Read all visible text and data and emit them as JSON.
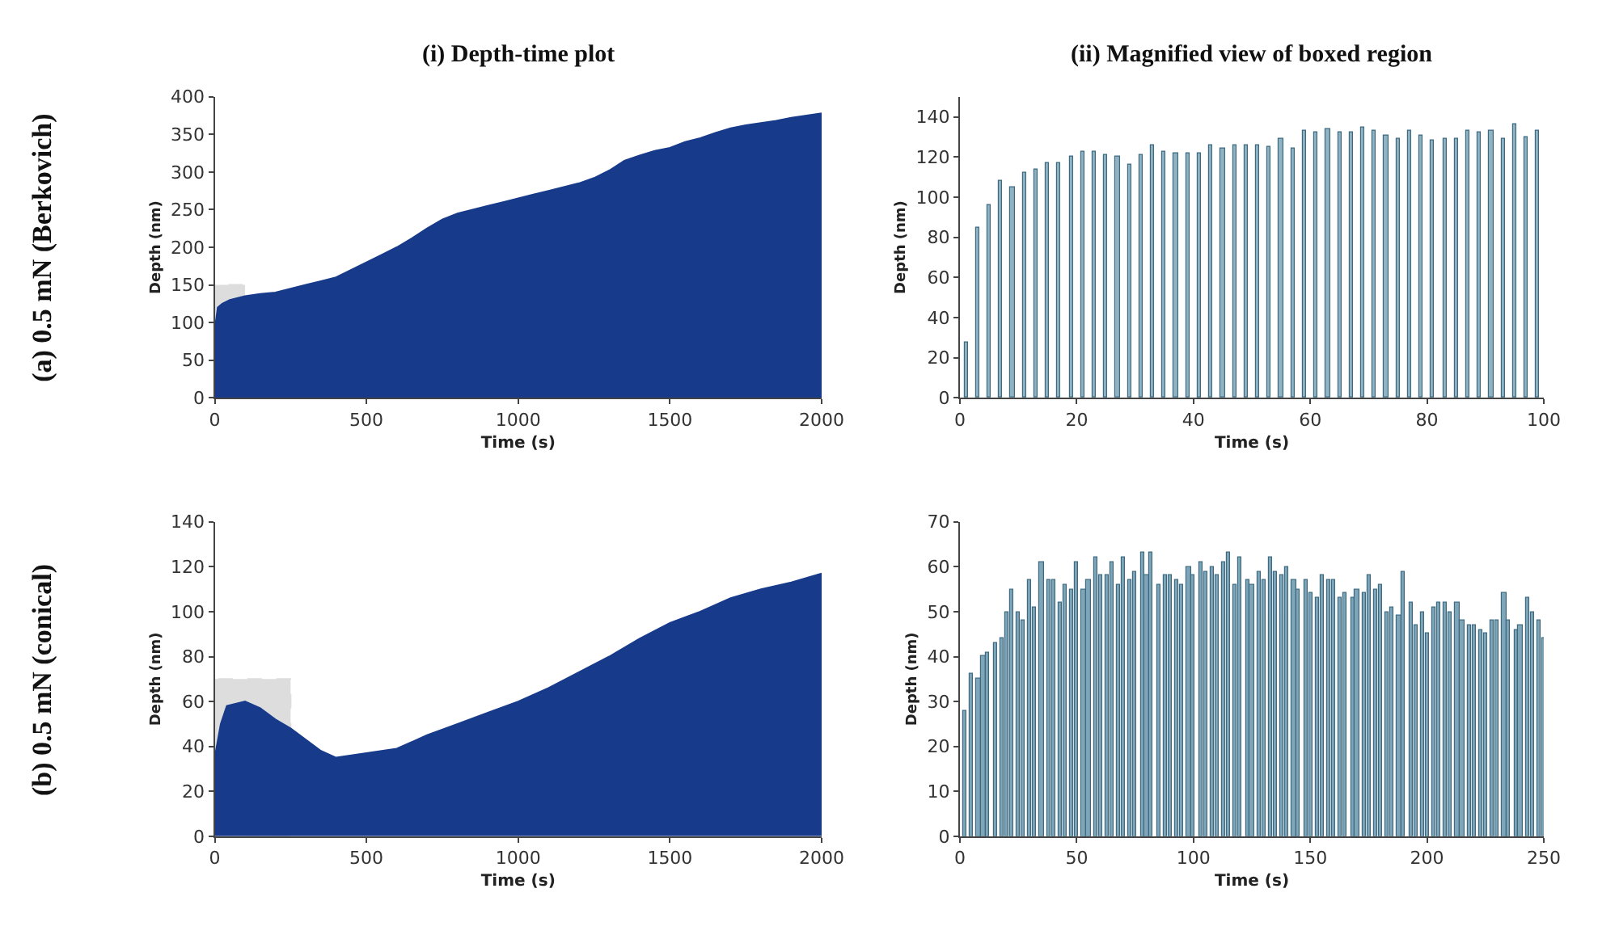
{
  "chart_data": [
    {
      "type": "area",
      "title": "(i) Depth-time plot",
      "annotations": [
        "(a) 0.5 mN (Berkovich)"
      ],
      "xlabel": "Time (s)",
      "ylabel": "Depth (nm)",
      "x": [
        0,
        10,
        25,
        50,
        100,
        150,
        200,
        250,
        300,
        350,
        400,
        450,
        500,
        550,
        600,
        650,
        700,
        750,
        800,
        850,
        900,
        950,
        1000,
        1050,
        1100,
        1150,
        1200,
        1250,
        1300,
        1350,
        1400,
        1450,
        1500,
        1550,
        1600,
        1650,
        1700,
        1750,
        1800,
        1850,
        1900,
        1950,
        2000
      ],
      "series": [
        {
          "color": "#173b8a",
          "values": [
            90,
            120,
            125,
            130,
            135,
            138,
            140,
            145,
            150,
            155,
            160,
            170,
            180,
            190,
            200,
            212,
            225,
            237,
            245,
            250,
            255,
            260,
            265,
            270,
            275,
            280,
            285,
            292,
            302,
            315,
            322,
            328,
            332,
            340,
            345,
            352,
            358,
            362,
            365,
            368,
            372,
            375,
            378
          ]
        }
      ],
      "xlim": [
        0,
        2000
      ],
      "xticks": [
        0,
        500,
        1000,
        1500,
        2000
      ],
      "ylim": [
        0,
        400
      ],
      "yticks": [
        0,
        50,
        100,
        150,
        200,
        250,
        300,
        350,
        400
      ],
      "bands": [
        {
          "axis": "x",
          "from": 0,
          "to": 100,
          "color": "#555555"
        }
      ]
    },
    {
      "type": "bar",
      "title": "(ii) Magnified view of boxed region",
      "xlabel": "Time (s)",
      "ylabel": "Depth (nm)",
      "x": [
        1,
        3,
        5,
        7,
        9,
        11,
        13,
        15,
        17,
        19,
        21,
        23,
        25,
        27,
        29,
        31,
        33,
        35,
        37,
        39,
        41,
        43,
        45,
        47,
        49,
        51,
        53,
        55,
        57,
        59,
        61,
        63,
        65,
        67,
        69,
        71,
        73,
        75,
        77,
        79,
        81,
        83,
        85,
        87,
        89,
        91,
        93,
        95,
        97,
        99
      ],
      "series": [
        {
          "color": "#8fb3c2",
          "values": [
            28,
            85,
            96,
            108,
            105,
            112,
            114,
            117,
            117,
            120,
            123,
            123,
            121,
            120,
            116,
            121,
            126,
            123,
            122,
            122,
            122,
            126,
            124,
            126,
            126,
            126,
            125,
            129,
            124,
            133,
            132,
            134,
            132,
            132,
            135,
            133,
            131,
            129,
            133,
            131,
            128,
            129,
            129,
            133,
            132,
            133,
            129,
            136,
            130,
            133
          ]
        }
      ],
      "xlim": [
        0,
        100
      ],
      "xticks": [
        0,
        20,
        40,
        60,
        80,
        100
      ],
      "ylim": [
        0,
        150
      ],
      "yticks": [
        0,
        20,
        40,
        60,
        80,
        100,
        120,
        140
      ]
    },
    {
      "type": "area",
      "annotations": [
        "(b) 0.5 mN (conical)"
      ],
      "xlabel": "Time (s)",
      "ylabel": "Depth (nm)",
      "x": [
        0,
        20,
        40,
        100,
        150,
        200,
        250,
        300,
        350,
        400,
        450,
        500,
        600,
        700,
        800,
        900,
        1000,
        1100,
        1200,
        1300,
        1400,
        1500,
        1600,
        1700,
        1800,
        1900,
        2000
      ],
      "series": [
        {
          "color": "#173b8a",
          "values": [
            35,
            50,
            58,
            60,
            57,
            52,
            48,
            43,
            38,
            35,
            36,
            37,
            39,
            45,
            50,
            55,
            60,
            66,
            73,
            80,
            88,
            95,
            100,
            106,
            110,
            113,
            117
          ]
        }
      ],
      "xlim": [
        0,
        2000
      ],
      "xticks": [
        0,
        500,
        1000,
        1500,
        2000
      ],
      "ylim": [
        0,
        140
      ],
      "yticks": [
        0,
        20,
        40,
        60,
        80,
        100,
        120,
        140
      ],
      "bands": [
        {
          "axis": "x",
          "from": 0,
          "to": 250,
          "color": "#555555"
        }
      ]
    },
    {
      "type": "bar",
      "xlabel": "Time (s)",
      "ylabel": "Depth (nm)",
      "x": [
        2,
        5,
        8,
        10,
        12,
        15,
        18,
        20,
        22,
        25,
        27,
        30,
        32,
        35,
        38,
        40,
        43,
        45,
        48,
        50,
        53,
        55,
        58,
        60,
        63,
        65,
        68,
        70,
        73,
        75,
        78,
        80,
        82,
        85,
        88,
        90,
        93,
        95,
        98,
        100,
        103,
        105,
        108,
        110,
        113,
        115,
        118,
        120,
        123,
        125,
        128,
        130,
        133,
        135,
        138,
        140,
        143,
        145,
        148,
        150,
        153,
        155,
        158,
        160,
        163,
        165,
        168,
        170,
        173,
        175,
        178,
        180,
        183,
        185,
        188,
        190,
        193,
        195,
        198,
        200,
        203,
        205,
        208,
        210,
        213,
        215,
        218,
        220,
        223,
        225,
        228,
        230,
        233,
        235,
        238,
        240,
        243,
        245,
        248,
        250
      ],
      "series": [
        {
          "color": "#7fa6b8",
          "values": [
            28,
            36,
            35,
            40,
            41,
            43,
            44,
            50,
            55,
            50,
            48,
            57,
            51,
            61,
            57,
            57,
            52,
            56,
            55,
            61,
            55,
            57,
            62,
            58,
            58,
            61,
            56,
            62,
            57,
            59,
            63,
            58,
            63,
            56,
            58,
            58,
            57,
            56,
            60,
            58,
            61,
            59,
            60,
            58,
            61,
            63,
            56,
            62,
            57,
            56,
            59,
            57,
            62,
            59,
            58,
            60,
            57,
            55,
            57,
            54,
            53,
            58,
            57,
            57,
            53,
            54,
            53,
            55,
            54,
            58,
            55,
            56,
            50,
            51,
            49,
            59,
            52,
            47,
            50,
            45,
            51,
            52,
            52,
            50,
            52,
            48,
            47,
            47,
            46,
            45,
            48,
            48,
            54,
            48,
            46,
            47,
            53,
            50,
            48,
            44
          ]
        }
      ],
      "xlim": [
        0,
        250
      ],
      "xticks": [
        0,
        50,
        100,
        150,
        200,
        250
      ],
      "ylim": [
        0,
        70
      ],
      "yticks": [
        0,
        10,
        20,
        30,
        40,
        50,
        60,
        70
      ]
    }
  ]
}
